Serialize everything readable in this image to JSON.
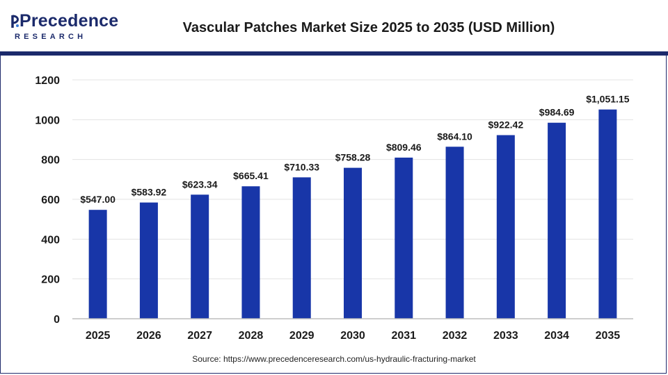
{
  "header": {
    "logo_word": "Precedence",
    "logo_sub": "RESEARCH",
    "title": "Vascular Patches Market Size 2025 to 2035 (USD Million)"
  },
  "source": "Source: https://www.precedenceresearch.com/us-hydraulic-fracturing-market",
  "colors": {
    "bar": "#1836a8",
    "brand": "#1b2a6b",
    "grid": "#e3e3e3"
  },
  "chart_data": {
    "type": "bar",
    "title": "Vascular Patches Market Size 2025 to 2035 (USD Million)",
    "xlabel": "",
    "ylabel": "",
    "categories": [
      "2025",
      "2026",
      "2027",
      "2028",
      "2029",
      "2030",
      "2031",
      "2032",
      "2033",
      "2034",
      "2035"
    ],
    "values": [
      547.0,
      583.92,
      623.34,
      665.41,
      710.33,
      758.28,
      809.46,
      864.1,
      922.42,
      984.69,
      1051.15
    ],
    "data_labels": [
      "$547.00",
      "$583.92",
      "$623.34",
      "$665.41",
      "$710.33",
      "$758.28",
      "$809.46",
      "$864.10",
      "$922.42",
      "$984.69",
      "$1,051.15"
    ],
    "ylim": [
      0,
      1200
    ],
    "yticks": [
      0,
      200,
      400,
      600,
      800,
      1000,
      1200
    ],
    "grid": true,
    "legend": "none"
  }
}
